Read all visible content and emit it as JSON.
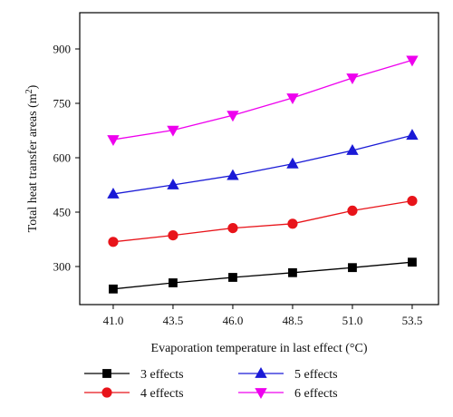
{
  "chart_data": {
    "type": "line",
    "x": [
      41.0,
      43.5,
      46.0,
      48.5,
      51.0,
      53.5
    ],
    "x_tick_labels": [
      "41.0",
      "43.5",
      "46.0",
      "48.5",
      "51.0",
      "53.5"
    ],
    "y_ticks": [
      300,
      450,
      600,
      750,
      900
    ],
    "y_tick_labels": [
      "300",
      "450",
      "600",
      "750",
      "900"
    ],
    "xlim": [
      39.6,
      54.6
    ],
    "ylim": [
      195,
      1000
    ],
    "xlabel": "Evaporation temperature in last effect (°C)",
    "ylabel_main": "Total heat transfer areas (m",
    "ylabel_sup": "2",
    "ylabel_close": ")",
    "grid": false,
    "legend_position": "bottom",
    "series": [
      {
        "name": "3 effects",
        "marker": "square",
        "color": "#000000",
        "values": [
          238,
          255,
          270,
          283,
          297,
          312
        ]
      },
      {
        "name": "4 effects",
        "marker": "circle",
        "color": "#e8141a",
        "values": [
          368,
          386,
          406,
          418,
          454,
          481
        ]
      },
      {
        "name": "5 effects",
        "marker": "triangle-up",
        "color": "#1a1ad6",
        "values": [
          500,
          525,
          551,
          583,
          620,
          662
        ]
      },
      {
        "name": "6 effects",
        "marker": "triangle-down",
        "color": "#ee00ee",
        "values": [
          650,
          676,
          717,
          765,
          820,
          869
        ]
      }
    ]
  }
}
